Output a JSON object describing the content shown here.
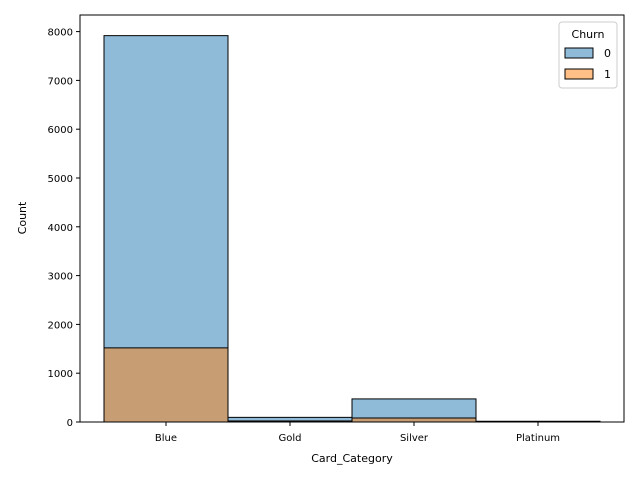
{
  "chart_data": {
    "type": "bar",
    "xlabel": "Card_Category",
    "ylabel": "Count",
    "categories": [
      "Blue",
      "Gold",
      "Silver",
      "Platinum"
    ],
    "ylim": [
      0,
      8340
    ],
    "yticks": [
      0,
      1000,
      2000,
      3000,
      4000,
      5000,
      6000,
      7000,
      8000
    ],
    "series": [
      {
        "name": "0",
        "values": [
          7917,
          95,
          473,
          15
        ],
        "color": "#1f77b4"
      },
      {
        "name": "1",
        "values": [
          1519,
          21,
          82,
          5
        ],
        "color": "#ff7f0e"
      }
    ],
    "legend": {
      "title": "Churn",
      "placement": "top-right"
    },
    "grid": false
  }
}
